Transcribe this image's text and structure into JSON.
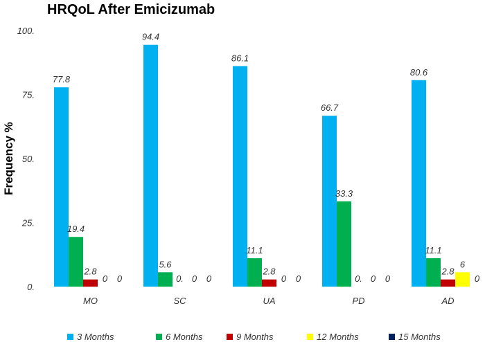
{
  "chart_data": {
    "type": "bar",
    "title": "HRQoL After Emicizumab",
    "xlabel": "",
    "ylabel": "Frequency %",
    "ylim": [
      0,
      100
    ],
    "yticks": [
      "0.",
      "25.",
      "50.",
      "75.",
      "100."
    ],
    "grid": false,
    "legend_position": "bottom",
    "categories": [
      "MO",
      "SC",
      "UA",
      "PD",
      "AD"
    ],
    "series": [
      {
        "name": "3 Months",
        "color": "#00B0F0",
        "values": [
          77.8,
          94.4,
          86.1,
          66.7,
          80.6
        ],
        "labels": [
          "77.8",
          "94.4",
          "86.1",
          "66.7",
          "80.6"
        ]
      },
      {
        "name": "6 Months",
        "color": "#00B050",
        "values": [
          19.4,
          5.6,
          11.1,
          33.3,
          11.1
        ],
        "labels": [
          "19.4",
          "5.6",
          "11.1",
          "33.3",
          "11.1"
        ]
      },
      {
        "name": "9 Months",
        "color": "#C00000",
        "values": [
          2.8,
          0,
          2.8,
          0,
          2.8
        ],
        "labels": [
          "2.8",
          "0.",
          "2.8",
          "0.",
          "2.8"
        ]
      },
      {
        "name": "12 Months",
        "color": "#FFFF00",
        "values": [
          0,
          0,
          0,
          0,
          5.6
        ],
        "labels": [
          "0",
          "0",
          "0",
          "0",
          "6"
        ]
      },
      {
        "name": "15 Months",
        "color": "#002060",
        "values": [
          0,
          0,
          0,
          0,
          0
        ],
        "labels": [
          "0",
          "0",
          "0",
          "0",
          "0"
        ]
      }
    ]
  }
}
